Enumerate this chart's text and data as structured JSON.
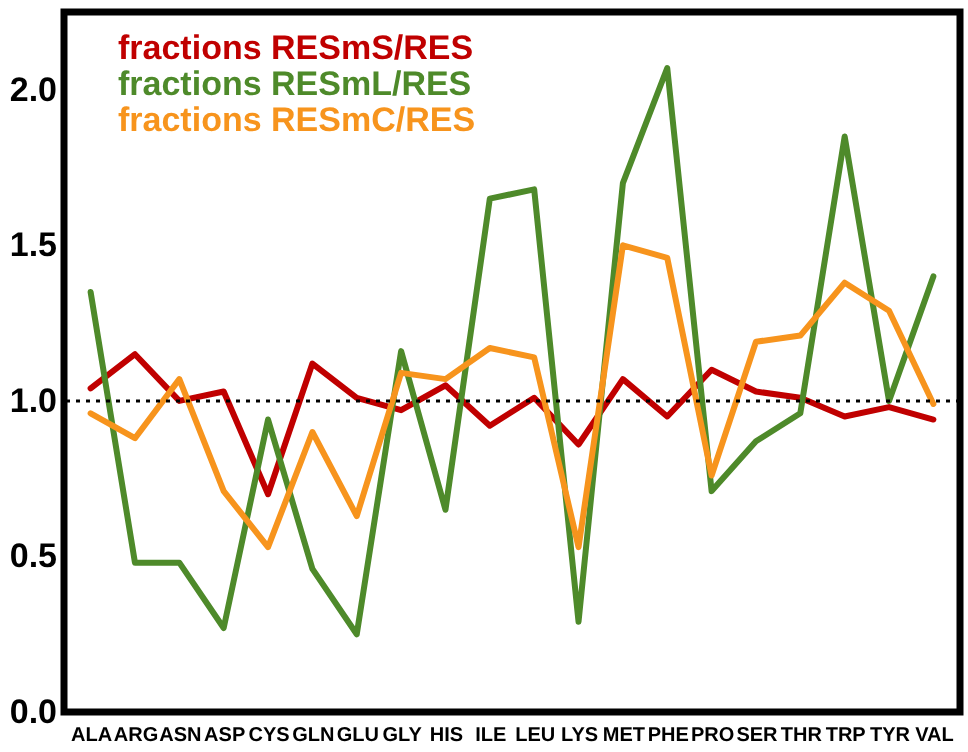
{
  "chart_data": {
    "type": "line",
    "categories": [
      "ALA",
      "ARG",
      "ASN",
      "ASP",
      "CYS",
      "GLN",
      "GLU",
      "GLY",
      "HIS",
      "ILE",
      "LEU",
      "LYS",
      "MET",
      "PHE",
      "PRO",
      "SER",
      "THR",
      "TRP",
      "TYR",
      "VAL"
    ],
    "series": [
      {
        "name": "fractions RESmS/RES",
        "color": "#c00000",
        "values": [
          1.04,
          1.15,
          1.0,
          1.03,
          0.7,
          1.12,
          1.01,
          0.97,
          1.05,
          0.92,
          1.01,
          0.86,
          1.07,
          0.95,
          1.1,
          1.03,
          1.01,
          0.95,
          0.98,
          0.94
        ]
      },
      {
        "name": "fractions RESmL/RES",
        "color": "#4e8a2a",
        "values": [
          1.35,
          0.48,
          0.48,
          0.27,
          0.94,
          0.46,
          0.25,
          1.16,
          0.65,
          1.65,
          1.68,
          0.29,
          1.7,
          2.07,
          0.71,
          0.87,
          0.96,
          1.85,
          1.0,
          1.4
        ]
      },
      {
        "name": "fractions RESmC/RES",
        "color": "#f7941d",
        "values": [
          0.96,
          0.88,
          1.07,
          0.71,
          0.53,
          0.9,
          0.63,
          1.09,
          1.07,
          1.17,
          1.14,
          0.53,
          1.5,
          1.46,
          0.76,
          1.19,
          1.21,
          1.38,
          1.29,
          0.99
        ]
      }
    ],
    "ylim": [
      0,
      2.25
    ],
    "yticks": [
      {
        "value": 0,
        "label": "0.0"
      },
      {
        "value": 0.5,
        "label": "0.5"
      },
      {
        "value": 1,
        "label": "1.0"
      },
      {
        "value": 1.5,
        "label": "1.5"
      },
      {
        "value": 2,
        "label": "2.0"
      }
    ],
    "ref_lines": [
      {
        "axis": "y",
        "value": 1,
        "line_style": "dotted",
        "color": "#000000"
      }
    ],
    "legend": "top left",
    "grid": false,
    "marker": "none",
    "line_style": "solid"
  }
}
